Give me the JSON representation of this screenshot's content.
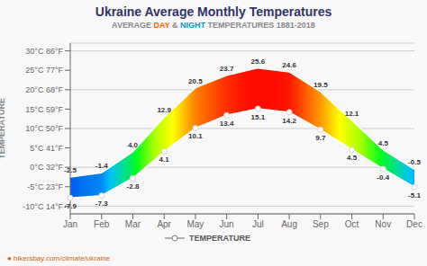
{
  "chart_data": {
    "type": "range_area",
    "title": "Ukraine Average Monthly Temperatures",
    "subtitle": [
      {
        "text": "AVERAGE ",
        "color": "#888888"
      },
      {
        "text": "DAY",
        "color": "#ff6600"
      },
      {
        "text": " & ",
        "color": "#888888"
      },
      {
        "text": "NIGHT",
        "color": "#0099cc"
      },
      {
        "text": " TEMPERATURES 1881-2018",
        "color": "#888888"
      }
    ],
    "ylabel": "TEMPERATURE",
    "categories": [
      "Jan",
      "Feb",
      "Mar",
      "Apr",
      "May",
      "Jun",
      "Jul",
      "Aug",
      "Sep",
      "Oct",
      "Nov",
      "Dec"
    ],
    "series": [
      {
        "name": "TEMPERATURE",
        "values": [
          -2.5,
          -1.4,
          4.0,
          12.9,
          20.5,
          23.7,
          25.6,
          24.6,
          19.5,
          12.1,
          4.5,
          -0.5
        ],
        "value_labels": [
          "-2.5",
          "-1.4",
          "4.0",
          "12.9",
          "20.5",
          "23.7",
          "25.6",
          "24.6",
          "19.5",
          "12.1",
          "4.5",
          "-0.5"
        ]
      },
      {
        "values": [
          -7.9,
          -7.3,
          -2.8,
          4.1,
          10.1,
          13.4,
          15.1,
          14.2,
          9.7,
          4.5,
          -0.4,
          -5.1
        ],
        "value_labels": [
          "-7.9",
          "-7.3",
          "-2.8",
          "4.1",
          "10.1",
          "13.4",
          "15.1",
          "14.2",
          "9.7",
          "4.5",
          "-0.4",
          "-5.1"
        ],
        "marker": "circle"
      }
    ],
    "ylim": [
      -12,
      32
    ],
    "yticks": [
      {
        "value": -10,
        "label": "-10°C 14°F"
      },
      {
        "value": -5,
        "label": "-5°C 23°F"
      },
      {
        "value": 0,
        "label": "0°C 32°F"
      },
      {
        "value": 5,
        "label": "5°C 41°F"
      },
      {
        "value": 10,
        "label": "10°C 50°F"
      },
      {
        "value": 15,
        "label": "15°C 59°F"
      },
      {
        "value": 20,
        "label": "20°C 68°F"
      },
      {
        "value": 25,
        "label": "25°C 77°F"
      },
      {
        "value": 30,
        "label": "30°C 86°F"
      }
    ],
    "grid": true,
    "legend": "bottom",
    "data_labels": true,
    "annotations": [
      "● hikersbay.com/climate/ukraine"
    ]
  }
}
